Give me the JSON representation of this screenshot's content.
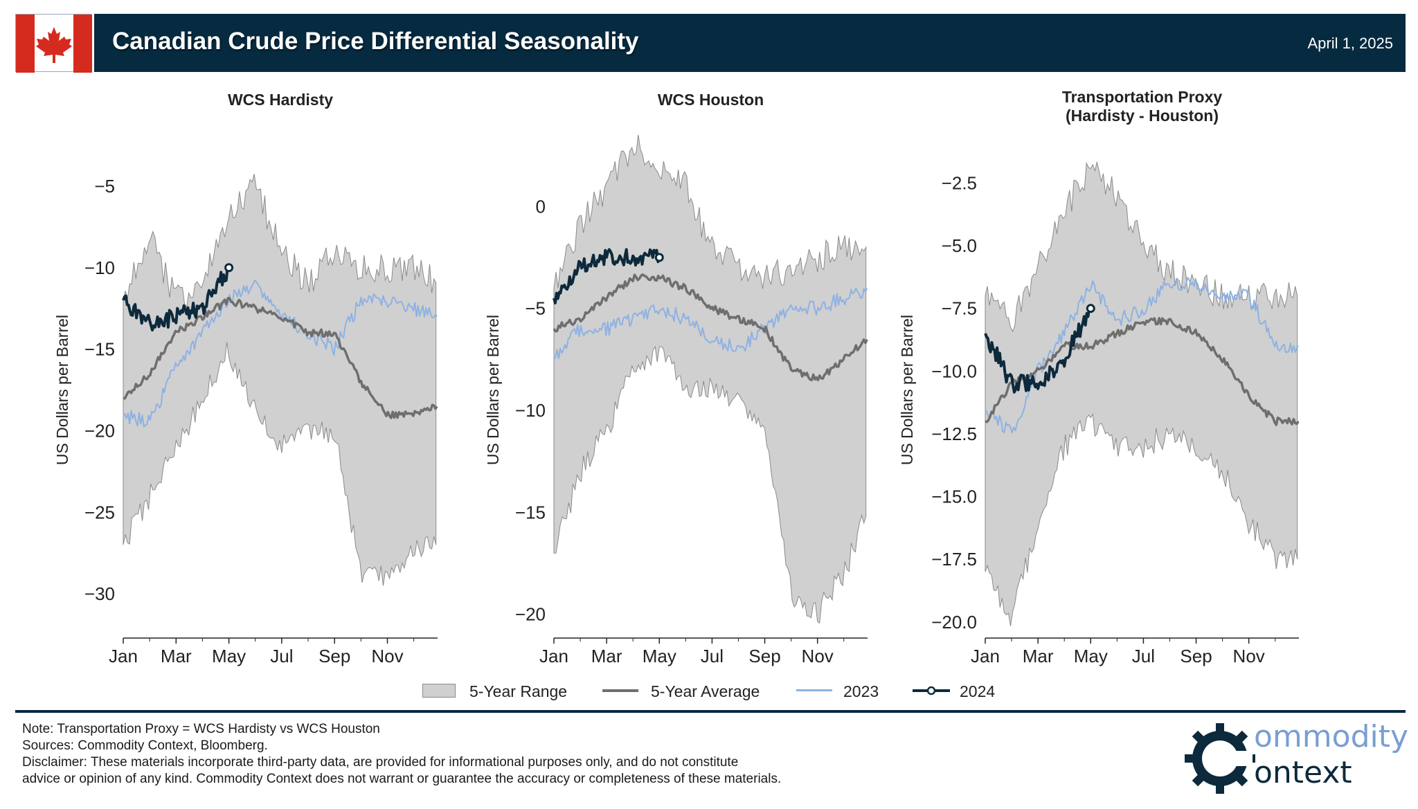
{
  "header": {
    "title": "Canadian Crude Price Differential Seasonality",
    "date": "April 1, 2025"
  },
  "colors": {
    "range_fill": "#d0d0d0",
    "range_edge": "#8a8a8a",
    "average": "#6e6e6e",
    "y2023": "#8eb1e3",
    "y2024": "#0d2a3c",
    "header_bg": "#062a3f",
    "flag_red": "#d52b1e"
  },
  "legend": [
    {
      "key": "range",
      "label": "5-Year Range"
    },
    {
      "key": "average",
      "label": "5-Year Average"
    },
    {
      "key": "y2023",
      "label": "2023"
    },
    {
      "key": "y2024",
      "label": "2024"
    }
  ],
  "notes": [
    "Note: Transportation Proxy = WCS Hardisty vs WCS Houston",
    "Sources: Commodity Context, Bloomberg.",
    "Disclaimer: These materials incorporate third-party data, are provided for informational purposes only, and do not constitute",
    "advice or opinion of any kind. Commodity Context does not warrant or guarantee the accuracy or completeness of these materials."
  ],
  "logo": {
    "line1": "ommodity",
    "line2": "ontext"
  },
  "chart_data": [
    {
      "type": "line",
      "title": "WCS Hardisty",
      "ylabel": "US Dollars per Barrel",
      "xlabel": "",
      "x_ticks": [
        "Jan",
        "Mar",
        "May",
        "Jul",
        "Sep",
        "Nov"
      ],
      "y_ticks": [
        -5,
        -10,
        -15,
        -20,
        -25,
        -30
      ],
      "ylim": [
        -32.5,
        -2.5
      ],
      "months": [
        1,
        2,
        3,
        4,
        5,
        6,
        7,
        8,
        9,
        10,
        11,
        12,
        12.9
      ],
      "series": [
        {
          "name": "5-Year Range High",
          "values": [
            -12,
            -8,
            -12,
            -11,
            -7,
            -5,
            -9,
            -11,
            -9,
            -10,
            -10,
            -10,
            -11
          ]
        },
        {
          "name": "5-Year Range Low",
          "values": [
            -27,
            -24,
            -21,
            -18,
            -15,
            -19,
            -21,
            -20,
            -20,
            -29,
            -29,
            -27,
            -27
          ]
        },
        {
          "name": "5-Year Average",
          "values": [
            -18,
            -16.5,
            -14,
            -13,
            -12,
            -12.5,
            -13,
            -14,
            -14,
            -17,
            -19,
            -19,
            -18.5
          ]
        },
        {
          "name": "2023",
          "values": [
            -19,
            -19.5,
            -16,
            -14,
            -12,
            -11,
            -13,
            -14,
            -15,
            -12,
            -12,
            -12.5,
            -13
          ]
        },
        {
          "name": "2024",
          "values": [
            -12,
            -13.5,
            -13,
            -12.5,
            -10
          ]
        }
      ]
    },
    {
      "type": "line",
      "title": "WCS Houston",
      "ylabel": "US Dollars per Barrel",
      "xlabel": "",
      "x_ticks": [
        "Jan",
        "Mar",
        "May",
        "Jul",
        "Sep",
        "Nov"
      ],
      "y_ticks": [
        0,
        -5,
        -10,
        -15,
        -20
      ],
      "ylim": [
        -21,
        3
      ],
      "months": [
        1,
        2,
        3,
        4,
        5,
        6,
        7,
        8,
        9,
        10,
        11,
        12,
        12.9
      ],
      "series": [
        {
          "name": "5-Year Range High",
          "values": [
            -4,
            -1,
            1,
            3,
            2,
            1,
            -2,
            -3,
            -3.5,
            -3,
            -2.5,
            -2,
            -2
          ]
        },
        {
          "name": "5-Year Range Low",
          "values": [
            -17,
            -13,
            -11,
            -8,
            -7,
            -9,
            -9,
            -9.5,
            -11,
            -19,
            -20,
            -18,
            -15
          ]
        },
        {
          "name": "5-Year Average",
          "values": [
            -6,
            -5.5,
            -4.5,
            -3.5,
            -3.5,
            -4,
            -5,
            -5.5,
            -6,
            -8,
            -8.5,
            -7.5,
            -6.5
          ]
        },
        {
          "name": "2023",
          "values": [
            -7.5,
            -6,
            -6,
            -5.5,
            -5,
            -5.5,
            -6.5,
            -7,
            -6,
            -5,
            -5,
            -4.5,
            -4
          ]
        },
        {
          "name": "2024",
          "values": [
            -4.5,
            -3,
            -2.5,
            -2.5,
            -2.5
          ]
        }
      ]
    },
    {
      "type": "line",
      "title": "Transportation Proxy\n(Hardisty - Houston)",
      "ylabel": "US Dollars per Barrel",
      "xlabel": "",
      "x_ticks": [
        "Jan",
        "Mar",
        "May",
        "Jul",
        "Sep",
        "Nov"
      ],
      "y_ticks": [
        -2.5,
        -5.0,
        -7.5,
        -10.0,
        -12.5,
        -15.0,
        -17.5,
        -20.0
      ],
      "ylim": [
        -20.5,
        -1
      ],
      "months": [
        1,
        2,
        3,
        4,
        5,
        6,
        7,
        8,
        9,
        10,
        11,
        12,
        12.9
      ],
      "series": [
        {
          "name": "5-Year Range High",
          "values": [
            -7,
            -8,
            -6,
            -3.5,
            -2,
            -3,
            -5,
            -6,
            -6.5,
            -7,
            -7,
            -7,
            -7
          ]
        },
        {
          "name": "5-Year Range Low",
          "values": [
            -18,
            -20,
            -16,
            -13,
            -12,
            -13,
            -13,
            -12.5,
            -13,
            -14,
            -16,
            -17.5,
            -17.5
          ]
        },
        {
          "name": "5-Year Average",
          "values": [
            -12,
            -10.5,
            -10,
            -9,
            -9,
            -8.5,
            -8,
            -8,
            -8.5,
            -9.5,
            -11,
            -12,
            -12
          ]
        },
        {
          "name": "2023",
          "values": [
            -11.5,
            -12.5,
            -10,
            -8.5,
            -6.5,
            -8,
            -7.5,
            -6.5,
            -6.5,
            -7,
            -7,
            -9,
            -9
          ]
        },
        {
          "name": "2024",
          "values": [
            -8.5,
            -10.5,
            -10.5,
            -9.5,
            -7.5
          ]
        }
      ]
    }
  ]
}
